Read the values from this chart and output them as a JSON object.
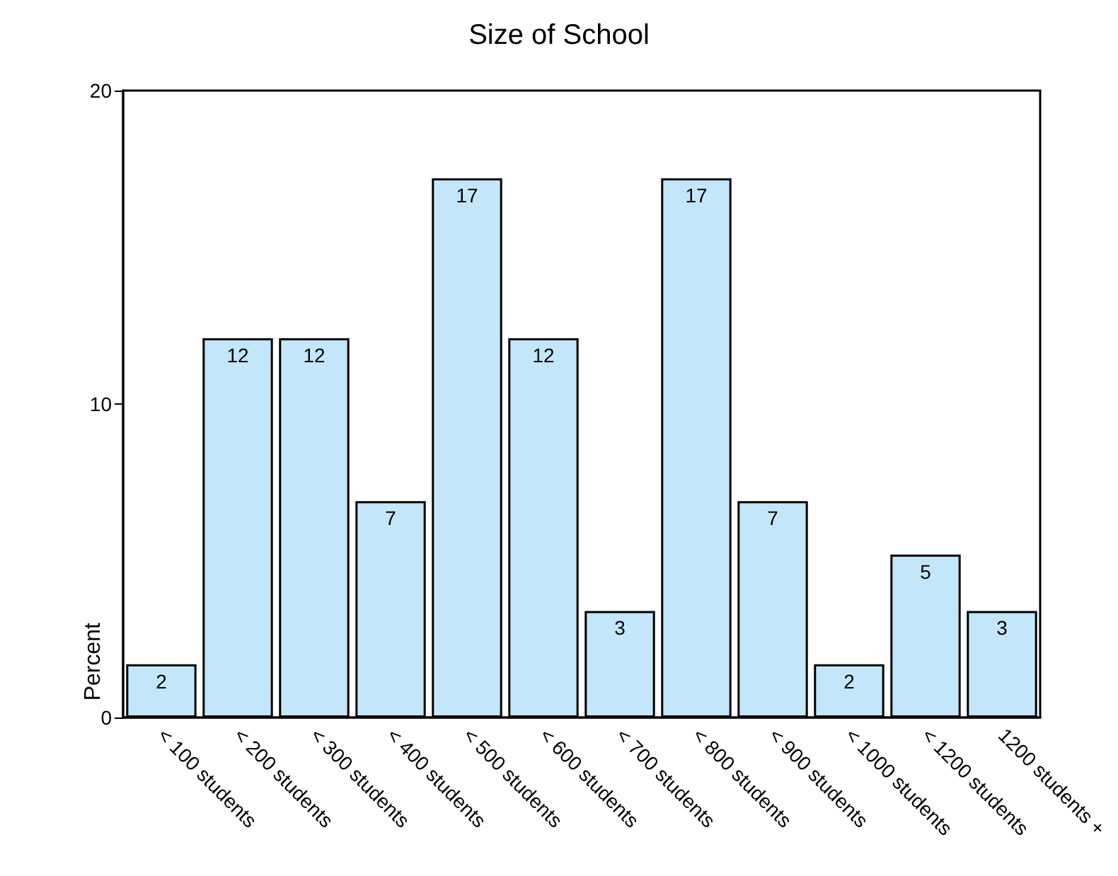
{
  "chart_data": {
    "type": "bar",
    "title": "Size of School",
    "ylabel": "Percent",
    "categories": [
      "< 100 students",
      "< 200 students",
      "< 300 students",
      "< 400 students",
      "< 500 students",
      "< 600 students",
      "< 700 students",
      "< 800 students",
      "< 900 students",
      "< 1000 students",
      "< 1200 students",
      "1200 students +"
    ],
    "values": [
      1.7,
      12.1,
      12.1,
      6.9,
      17.2,
      12.1,
      3.4,
      17.2,
      6.9,
      1.7,
      5.2,
      3.4
    ],
    "value_labels": [
      "2",
      "12",
      "12",
      "7",
      "17",
      "12",
      "3",
      "17",
      "7",
      "2",
      "5",
      "3"
    ],
    "color": "#c4e6fa",
    "ylim": [
      0,
      20
    ],
    "yticks": [
      0,
      10,
      20
    ],
    "grid": false
  }
}
